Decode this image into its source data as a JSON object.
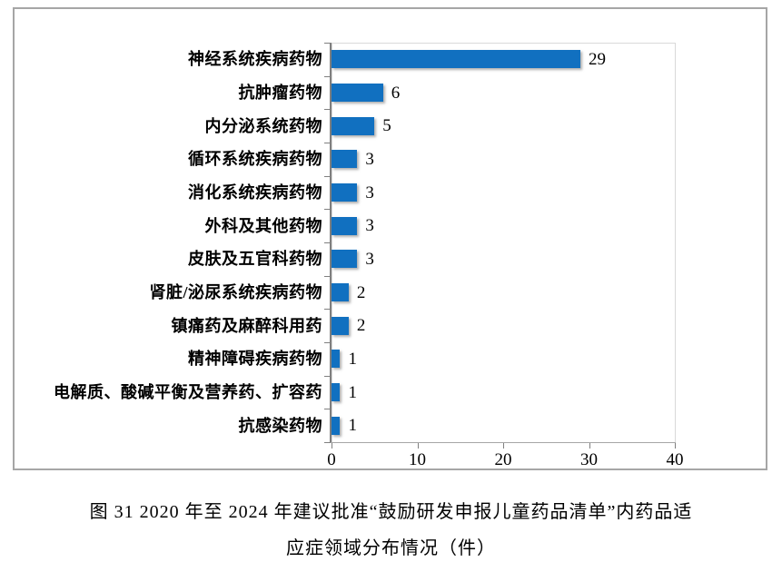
{
  "figure": {
    "caption": {
      "line1": "图 31  2020 年至 2024 年建议批准“鼓励研发申报儿童药品清单”内药品适",
      "line2": "应症领域分布情况（件）"
    }
  },
  "chart_data": {
    "type": "bar",
    "orientation": "horizontal",
    "title": "图 31 2020 年至 2024 年建议批准“鼓励研发申报儿童药品清单”内药品适应症领域分布情况（件）",
    "categories": [
      "神经系统疾病药物",
      "抗肿瘤药物",
      "内分泌系统药物",
      "循环系统疾病药物",
      "消化系统疾病药物",
      "外科及其他药物",
      "皮肤及五官科药物",
      "肾脏/泌尿系统疾病药物",
      "镇痛药及麻醉科用药",
      "精神障碍疾病药物",
      "电解质、酸碱平衡及营养药、扩容药",
      "抗感染药物"
    ],
    "values": [
      29,
      6,
      5,
      3,
      3,
      3,
      3,
      2,
      2,
      1,
      1,
      1
    ],
    "xlabel": "",
    "ylabel": "",
    "xlim": [
      0,
      40
    ],
    "x_ticks": [
      0,
      10,
      20,
      30,
      40
    ],
    "x_tick_labels": [
      "0",
      "10",
      "20",
      "30",
      "40"
    ],
    "data_labels": true,
    "grid": false,
    "legend": null,
    "bar_color": "#1170c0",
    "axis_color": "#7f7f7f",
    "plot_border_color": "#d9d9d9"
  }
}
